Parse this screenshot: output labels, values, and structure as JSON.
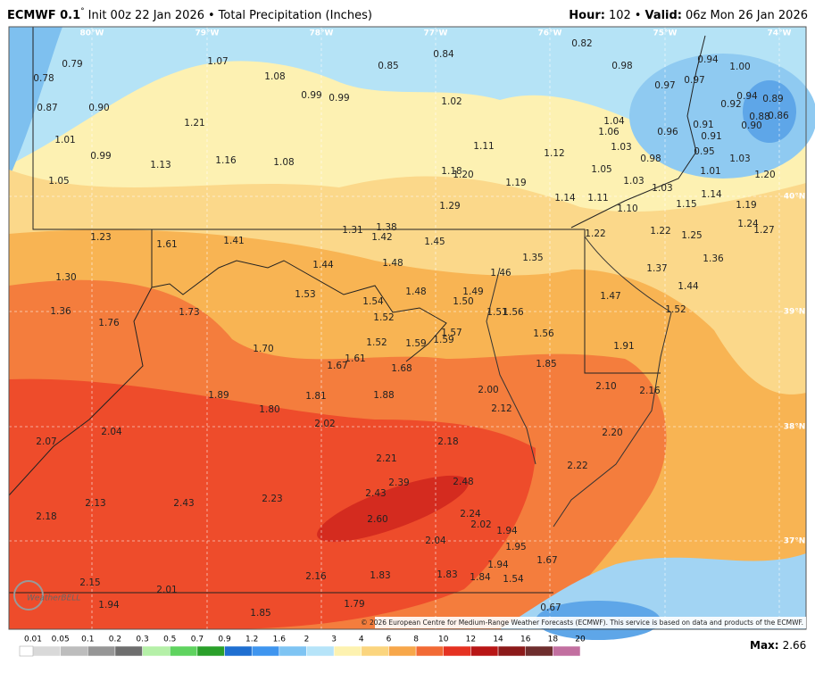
{
  "header": {
    "model": "ECMWF 0.1",
    "degree": "°",
    "init": "Init 00z 22 Jan 2026",
    "sep": "•",
    "product": "Total Precipitation (Inches)",
    "hour_label": "Hour:",
    "hour": "102",
    "valid_label": "Valid:",
    "valid": "06z Mon 26 Jan 2026"
  },
  "map": {
    "longitudes": [
      "80°W",
      "79°W",
      "78°W",
      "77°W",
      "76°W",
      "75°W",
      "74°W"
    ],
    "latitudes": [
      "40°N",
      "39°N",
      "38°N",
      "37°N"
    ],
    "labels": [
      "0.79",
      "0.78",
      "0.87",
      "0.90",
      "1.01",
      "0.99",
      "1.05",
      "1.07",
      "1.08",
      "1.21",
      "1.13",
      "1.16",
      "1.08",
      "0.99",
      "0.99",
      "0.85",
      "0.84",
      "1.02",
      "0.82",
      "0.98",
      "0.94",
      "1.00",
      "0.97",
      "0.97",
      "0.94",
      "0.92",
      "0.89",
      "1.04",
      "1.06",
      "0.91",
      "0.96",
      "0.91",
      "0.88",
      "0.86",
      "0.90",
      "1.03",
      "0.95",
      "0.98",
      "1.03",
      "1.01",
      "1.20",
      "1.11",
      "1.12",
      "1.05",
      "1.18",
      "1.20",
      "1.19",
      "1.03",
      "1.03",
      "1.14",
      "1.11",
      "1.14",
      "1.29",
      "1.10",
      "1.15",
      "1.19",
      "1.24",
      "1.27",
      "1.22",
      "1.22",
      "1.25",
      "1.23",
      "1.61",
      "1.41",
      "1.31",
      "1.38",
      "1.42",
      "1.45",
      "1.35",
      "1.30",
      "1.44",
      "1.48",
      "1.37",
      "1.36",
      "1.53",
      "1.48",
      "1.46",
      "1.49",
      "1.50",
      "1.47",
      "1.44",
      "1.36",
      "1.73",
      "1.54",
      "1.52",
      "1.51",
      "1.56",
      "1.52",
      "1.76",
      "1.57",
      "1.56",
      "1.59",
      "1.59",
      "1.52",
      "1.70",
      "1.61",
      "1.67",
      "1.91",
      "1.68",
      "1.85",
      "2.00",
      "2.10",
      "2.16",
      "1.89",
      "1.81",
      "1.88",
      "2.12",
      "1.80",
      "2.04",
      "2.07",
      "2.02",
      "2.20",
      "2.18",
      "2.21",
      "2.22",
      "2.39",
      "2.48",
      "2.43",
      "2.13",
      "2.43",
      "2.23",
      "2.18",
      "2.60",
      "2.24",
      "2.02",
      "1.94",
      "2.04",
      "1.95",
      "1.67",
      "1.94",
      "2.16",
      "1.83",
      "1.83",
      "1.84",
      "1.54",
      "2.15",
      "2.01",
      "0.67",
      "1.94",
      "1.79",
      "1.85"
    ],
    "watermark": "WeatherBELL",
    "copyright": "© 2026 European Centre for Medium-Range Weather Forecasts (ECMWF). This service is based on data and products of the ECMWF."
  },
  "legend": {
    "ticks": [
      "0.01",
      "0.05",
      "0.1",
      "0.2",
      "0.3",
      "0.5",
      "0.7",
      "0.9",
      "1.2",
      "1.6",
      "2",
      "3",
      "4",
      "6",
      "8",
      "10",
      "12",
      "14",
      "16",
      "18",
      "20"
    ]
  },
  "max": {
    "label": "Max:",
    "value": "2.66"
  }
}
